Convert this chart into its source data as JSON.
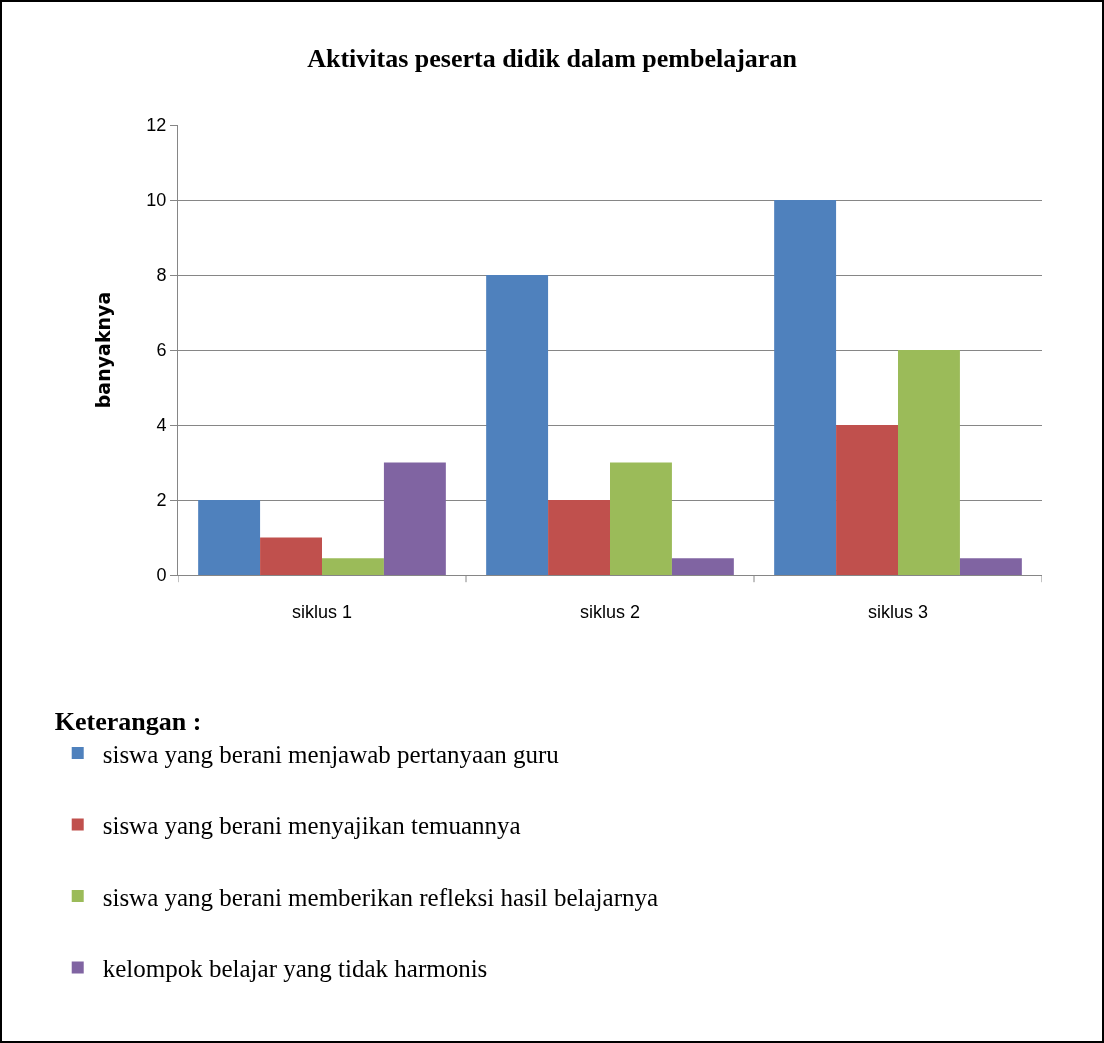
{
  "chart_data": {
    "type": "bar",
    "title": "Aktivitas peserta didik dalam pembelajaran",
    "ylabel": "banyaknya",
    "legend_title": "Keterangan :",
    "categories": [
      "siklus 1",
      "siklus 2",
      "siklus 3"
    ],
    "series": [
      {
        "name": "siswa yang berani menjawab pertanyaan guru",
        "color": "#4f81bd",
        "values": [
          2,
          8,
          10
        ]
      },
      {
        "name": "siswa yang berani menyajikan temuannya",
        "color": "#c0504d",
        "values": [
          1,
          2,
          4
        ]
      },
      {
        "name": "siswa yang berani memberikan refleksi hasil belajarnya",
        "color": "#9bbb59",
        "values": [
          0.6,
          3,
          6
        ],
        "base": [
          -0.15,
          0,
          0
        ]
      },
      {
        "name": "kelompok belajar yang tidak harmonis",
        "color": "#8064a2",
        "values": [
          3,
          0.6,
          0.6
        ],
        "base": [
          0,
          -0.15,
          -0.15
        ]
      }
    ],
    "ylim": [
      0,
      12
    ],
    "yticks": [
      0,
      2,
      4,
      6,
      8,
      10,
      12
    ],
    "grid": "y",
    "legend": "bottom left"
  }
}
